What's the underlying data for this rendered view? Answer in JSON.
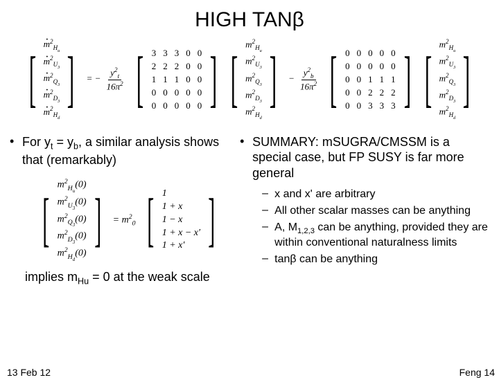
{
  "title": "HIGH TANβ",
  "topEquation": {
    "leftVec": [
      "ṁ²_Hu",
      "ṁ²_U₃",
      "ṁ²_Q₃",
      "ṁ²_D₃",
      "ṁ²_Hd"
    ],
    "term1": {
      "prefix": "= −",
      "coefNum": "y²_t",
      "coefDen": "16π²",
      "matrix": [
        [
          "3",
          "3",
          "3",
          "0",
          "0"
        ],
        [
          "2",
          "2",
          "2",
          "0",
          "0"
        ],
        [
          "1",
          "1",
          "1",
          "0",
          "0"
        ],
        [
          "0",
          "0",
          "0",
          "0",
          "0"
        ],
        [
          "0",
          "0",
          "0",
          "0",
          "0"
        ]
      ]
    },
    "rightVec1": [
      "m²_Hu",
      "m²_U₃",
      "m²_Q₃",
      "m²_D₃",
      "m²_Hd"
    ],
    "term2": {
      "prefix": "−",
      "coefNum": "y²_b",
      "coefDen": "16π²",
      "matrix": [
        [
          "0",
          "0",
          "0",
          "0",
          "0"
        ],
        [
          "0",
          "0",
          "0",
          "0",
          "0"
        ],
        [
          "0",
          "0",
          "1",
          "1",
          "1"
        ],
        [
          "0",
          "0",
          "2",
          "2",
          "2"
        ],
        [
          "0",
          "0",
          "3",
          "3",
          "3"
        ]
      ]
    },
    "rightVec2": [
      "m²_Hu",
      "m²_U₃",
      "m²_Q₃",
      "m²_D₃",
      "m²_Hd"
    ]
  },
  "leftBullet": {
    "text_a": "For y",
    "sub_a": "t",
    "text_b": " = y",
    "sub_b": "b",
    "text_c": ", a similar analysis shows that (remarkably)"
  },
  "smallEq": {
    "leftVec": [
      "m²_Hu(0)",
      "m²_U₃(0)",
      "m²_Q₃(0)",
      "m²_D₃(0)",
      "m²_Hd(0)"
    ],
    "eq": "= m²₀",
    "rightVec": [
      "1",
      "1 + x",
      "1 − x",
      "1 + x − x′",
      "1 + x′"
    ]
  },
  "implies": {
    "a": "implies m",
    "sub": "Hu",
    "b": " = 0 at the weak scale"
  },
  "rightBullet": "SUMMARY: mSUGRA/CMSSM is a special case, but FP SUSY is far more general",
  "subBullets": [
    "x and x' are arbitrary",
    "All other scalar masses can be anything",
    "A, M₁,₂,₃ can be anything, provided they are within conventional naturalness limits",
    "tanβ can be anything"
  ],
  "sub3": {
    "a": "A, M",
    "sub": "1,2,3",
    "b": " can be anything, provided they are within conventional naturalness limits"
  },
  "footerLeft": "13 Feb 12",
  "footerRight": "Feng 14",
  "style": {
    "background": "#ffffff",
    "text": "#000000",
    "titleSize": 30,
    "bodySize": 18,
    "subSize": 16,
    "footerSize": 14
  }
}
